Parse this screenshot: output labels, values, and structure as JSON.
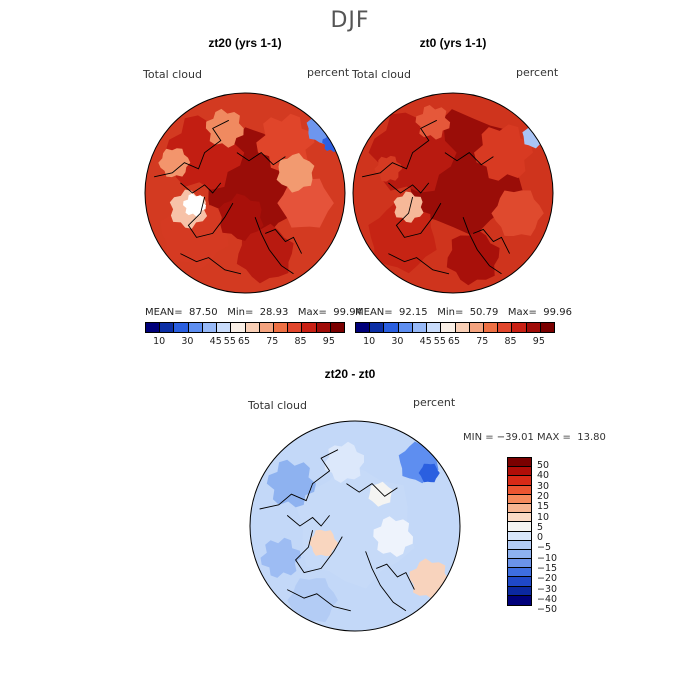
{
  "title": "DJF",
  "colors": {
    "abs_scale": [
      "#00007a",
      "#0b2fa5",
      "#2a5fe0",
      "#5e8ef0",
      "#97b9f7",
      "#c9dcfb",
      "#f9efe6",
      "#f9cfb6",
      "#f4a37f",
      "#ee7044",
      "#e1462c",
      "#c92014",
      "#a00c08",
      "#7a0000"
    ],
    "diff_scale": [
      "#7a0000",
      "#b00d08",
      "#d82a17",
      "#ec5531",
      "#f68a5c",
      "#f8b591",
      "#fbdac4",
      "#f4f4f2",
      "#d7e6fb",
      "#b3ccf5",
      "#8eb2f0",
      "#6b93e9",
      "#3e6ee0",
      "#1f48c8",
      "#0b28a0",
      "#00007a"
    ]
  },
  "panels": [
    {
      "title": "zt20 (yrs 1-1)",
      "var_label": "Total cloud",
      "unit": "percent",
      "mean_label": "MEAN=",
      "mean": "87.50",
      "min_label": "Min=",
      "min": "28.93",
      "max_label": "Max=",
      "max": "99.94",
      "ticks": [
        "10",
        "30",
        "45",
        "55",
        "65",
        "75",
        "85",
        "95"
      ]
    },
    {
      "title": "zt0 (yrs 1-1)",
      "var_label": "Total cloud",
      "unit": "percent",
      "mean_label": "MEAN=",
      "mean": "92.15",
      "min_label": "Min=",
      "min": "50.79",
      "max_label": "Max=",
      "max": "99.96",
      "ticks": [
        "10",
        "30",
        "45",
        "55",
        "65",
        "75",
        "85",
        "95"
      ]
    }
  ],
  "diff": {
    "title": "zt20 - zt0",
    "var_label": "Total cloud",
    "unit": "percent",
    "minmax_text": "MIN = −39.01 MAX =  13.80",
    "ticks": [
      "50",
      "40",
      "30",
      "20",
      "15",
      "10",
      "5",
      "0",
      "−5",
      "−10",
      "−15",
      "−20",
      "−30",
      "−40",
      "−50"
    ]
  }
}
